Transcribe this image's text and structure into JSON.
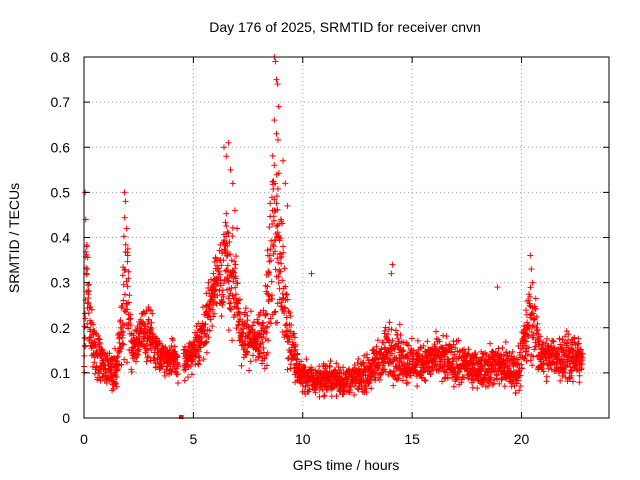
{
  "chart_data": {
    "type": "scatter",
    "title": "Day 176 of 2025, SRMTID for receiver cnvn",
    "xlabel": "GPS time / hours",
    "ylabel": "SRMTID / TECUs",
    "xlim": [
      0,
      24
    ],
    "ylim": [
      0,
      0.8
    ],
    "xticks": [
      0,
      5,
      10,
      15,
      20
    ],
    "yticks": [
      0,
      0.1,
      0.2,
      0.3,
      0.4,
      0.5,
      0.6,
      0.7,
      0.8
    ],
    "xtick_labels": [
      "0",
      "5",
      "10",
      "15",
      "20"
    ],
    "ytick_labels": [
      "0",
      "0.1",
      "0.2",
      "0.3",
      "0.4",
      "0.5",
      "0.6",
      "0.7",
      "0.8"
    ],
    "grid": true,
    "marker": "+",
    "marker_color": "#ff0000",
    "series": [
      {
        "name": "SRMTID",
        "envelope": [
          {
            "x": 0.0,
            "base": 0.12,
            "spread": 0.05
          },
          {
            "x": 0.1,
            "base": 0.3,
            "spread": 0.18
          },
          {
            "x": 0.4,
            "base": 0.15,
            "spread": 0.08
          },
          {
            "x": 1.0,
            "base": 0.11,
            "spread": 0.06
          },
          {
            "x": 1.5,
            "base": 0.1,
            "spread": 0.06
          },
          {
            "x": 1.9,
            "base": 0.3,
            "spread": 0.2
          },
          {
            "x": 2.2,
            "base": 0.15,
            "spread": 0.06
          },
          {
            "x": 2.6,
            "base": 0.18,
            "spread": 0.07
          },
          {
            "x": 3.0,
            "base": 0.19,
            "spread": 0.08
          },
          {
            "x": 3.5,
            "base": 0.14,
            "spread": 0.05
          },
          {
            "x": 4.0,
            "base": 0.13,
            "spread": 0.05
          },
          {
            "x": 4.5,
            "base": 0.12,
            "spread": 0.06
          },
          {
            "x": 5.0,
            "base": 0.14,
            "spread": 0.05
          },
          {
            "x": 5.5,
            "base": 0.2,
            "spread": 0.08
          },
          {
            "x": 6.0,
            "base": 0.3,
            "spread": 0.1
          },
          {
            "x": 6.4,
            "base": 0.35,
            "spread": 0.2
          },
          {
            "x": 6.8,
            "base": 0.3,
            "spread": 0.15
          },
          {
            "x": 7.2,
            "base": 0.18,
            "spread": 0.07
          },
          {
            "x": 7.8,
            "base": 0.17,
            "spread": 0.07
          },
          {
            "x": 8.3,
            "base": 0.2,
            "spread": 0.1
          },
          {
            "x": 8.7,
            "base": 0.45,
            "spread": 0.3
          },
          {
            "x": 9.0,
            "base": 0.35,
            "spread": 0.2
          },
          {
            "x": 9.3,
            "base": 0.2,
            "spread": 0.1
          },
          {
            "x": 9.8,
            "base": 0.1,
            "spread": 0.05
          },
          {
            "x": 10.5,
            "base": 0.08,
            "spread": 0.04
          },
          {
            "x": 11.0,
            "base": 0.09,
            "spread": 0.05
          },
          {
            "x": 12.0,
            "base": 0.08,
            "spread": 0.04
          },
          {
            "x": 13.0,
            "base": 0.1,
            "spread": 0.05
          },
          {
            "x": 14.0,
            "base": 0.15,
            "spread": 0.08
          },
          {
            "x": 15.0,
            "base": 0.12,
            "spread": 0.06
          },
          {
            "x": 16.0,
            "base": 0.13,
            "spread": 0.06
          },
          {
            "x": 17.0,
            "base": 0.12,
            "spread": 0.06
          },
          {
            "x": 18.0,
            "base": 0.11,
            "spread": 0.05
          },
          {
            "x": 19.0,
            "base": 0.12,
            "spread": 0.07
          },
          {
            "x": 19.8,
            "base": 0.1,
            "spread": 0.05
          },
          {
            "x": 20.4,
            "base": 0.22,
            "spread": 0.12
          },
          {
            "x": 21.0,
            "base": 0.13,
            "spread": 0.06
          },
          {
            "x": 22.0,
            "base": 0.14,
            "spread": 0.07
          },
          {
            "x": 22.8,
            "base": 0.13,
            "spread": 0.06
          }
        ],
        "highlights": [
          {
            "x": 0.05,
            "y": 0.5
          },
          {
            "x": 0.08,
            "y": 0.44
          },
          {
            "x": 0.12,
            "y": 0.38
          },
          {
            "x": 0.15,
            "y": 0.33
          },
          {
            "x": 1.85,
            "y": 0.5
          },
          {
            "x": 1.9,
            "y": 0.48
          },
          {
            "x": 1.95,
            "y": 0.42
          },
          {
            "x": 2.0,
            "y": 0.36
          },
          {
            "x": 6.4,
            "y": 0.6
          },
          {
            "x": 6.5,
            "y": 0.58
          },
          {
            "x": 6.6,
            "y": 0.61
          },
          {
            "x": 6.7,
            "y": 0.55
          },
          {
            "x": 6.8,
            "y": 0.52
          },
          {
            "x": 6.9,
            "y": 0.46
          },
          {
            "x": 7.0,
            "y": 0.42
          },
          {
            "x": 8.7,
            "y": 0.8
          },
          {
            "x": 8.75,
            "y": 0.79
          },
          {
            "x": 8.8,
            "y": 0.75
          },
          {
            "x": 8.85,
            "y": 0.74
          },
          {
            "x": 8.9,
            "y": 0.69
          },
          {
            "x": 8.7,
            "y": 0.66
          },
          {
            "x": 8.8,
            "y": 0.63
          },
          {
            "x": 8.7,
            "y": 0.56
          },
          {
            "x": 9.1,
            "y": 0.57
          },
          {
            "x": 9.2,
            "y": 0.52
          },
          {
            "x": 9.3,
            "y": 0.47
          },
          {
            "x": 8.6,
            "y": 0.43
          },
          {
            "x": 8.9,
            "y": 0.4
          },
          {
            "x": 9.1,
            "y": 0.38
          },
          {
            "x": 14.1,
            "y": 0.34
          },
          {
            "x": 14.05,
            "y": 0.32
          },
          {
            "x": 20.4,
            "y": 0.36
          },
          {
            "x": 20.45,
            "y": 0.33
          },
          {
            "x": 20.5,
            "y": 0.3
          },
          {
            "x": 10.4,
            "y": 0.32
          },
          {
            "x": 18.9,
            "y": 0.29
          }
        ],
        "gap": {
          "x0": 4.3,
          "x1": 4.55
        },
        "zero_markers": [
          {
            "x": 4.43,
            "y": 0.0
          },
          {
            "x": 4.46,
            "y": 0.0
          }
        ]
      }
    ]
  }
}
